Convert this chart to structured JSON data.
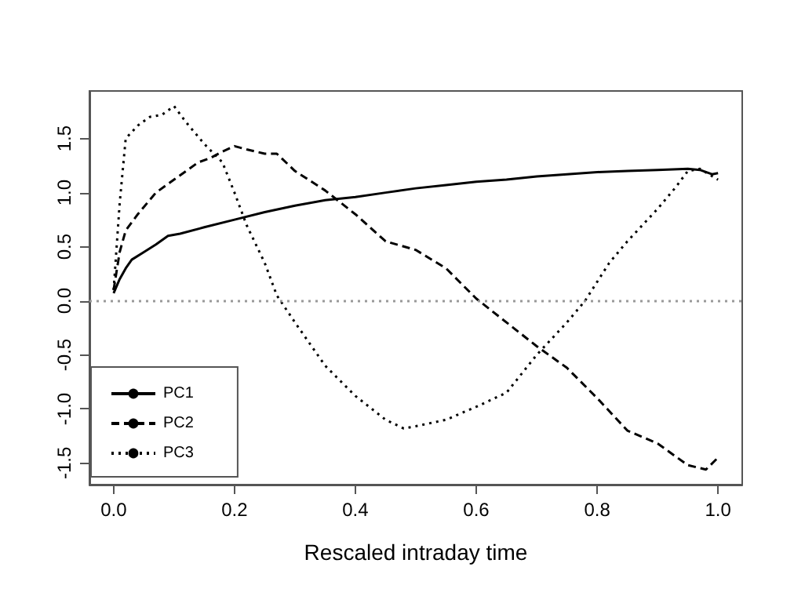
{
  "chart_data": {
    "type": "line",
    "xlabel": "Rescaled intraday time",
    "xlim": [
      -0.04,
      1.04
    ],
    "xticks": [
      {
        "value": 0,
        "label": "0.0"
      },
      0.2,
      0.4,
      0.6,
      0.8,
      {
        "value": 1,
        "label": "1.0"
      }
    ],
    "ylim": [
      -1.7,
      1.94
    ],
    "yticks": [
      -1.5,
      {
        "value": -1,
        "label": "-1.0"
      },
      -0.5,
      {
        "value": 0,
        "label": "0.0"
      },
      0.5,
      {
        "value": 1,
        "label": "1.0"
      },
      1.5
    ],
    "grid": false,
    "legend": "bottom left",
    "marker": "none",
    "ref_lines": [
      {
        "axis": "y",
        "value": 0,
        "color": "#999999",
        "line_style": "dotted"
      }
    ],
    "series": [
      {
        "name": "PC1",
        "color": "#000000",
        "line_style": "solid",
        "x": [
          0,
          0.01,
          0.02,
          0.03,
          0.05,
          0.07,
          0.09,
          0.11,
          0.15,
          0.2,
          0.25,
          0.3,
          0.35,
          0.4,
          0.45,
          0.5,
          0.55,
          0.6,
          0.65,
          0.7,
          0.75,
          0.8,
          0.85,
          0.9,
          0.95,
          0.97,
          0.99,
          1.0
        ],
        "values": [
          0.07,
          0.2,
          0.3,
          0.38,
          0.45,
          0.52,
          0.6,
          0.62,
          0.68,
          0.75,
          0.82,
          0.88,
          0.93,
          0.96,
          1.0,
          1.04,
          1.07,
          1.1,
          1.12,
          1.15,
          1.17,
          1.19,
          1.2,
          1.21,
          1.22,
          1.21,
          1.17,
          1.18
        ]
      },
      {
        "name": "PC2",
        "color": "#000000",
        "line_style": "dashed",
        "x": [
          0,
          0.01,
          0.02,
          0.04,
          0.07,
          0.1,
          0.14,
          0.16,
          0.18,
          0.2,
          0.22,
          0.25,
          0.27,
          0.3,
          0.35,
          0.4,
          0.45,
          0.5,
          0.55,
          0.6,
          0.65,
          0.7,
          0.75,
          0.8,
          0.85,
          0.9,
          0.95,
          0.98,
          1.0
        ],
        "values": [
          0.1,
          0.45,
          0.65,
          0.8,
          1.0,
          1.12,
          1.28,
          1.32,
          1.38,
          1.43,
          1.4,
          1.36,
          1.36,
          1.2,
          1.02,
          0.8,
          0.55,
          0.47,
          0.3,
          0.02,
          -0.2,
          -0.42,
          -0.62,
          -0.9,
          -1.2,
          -1.32,
          -1.52,
          -1.56,
          -1.45
        ]
      },
      {
        "name": "PC3",
        "color": "#000000",
        "line_style": "dotted",
        "x": [
          0,
          0.01,
          0.02,
          0.04,
          0.06,
          0.08,
          0.1,
          0.12,
          0.15,
          0.18,
          0.2,
          0.22,
          0.25,
          0.27,
          0.3,
          0.35,
          0.4,
          0.45,
          0.48,
          0.5,
          0.55,
          0.6,
          0.65,
          0.7,
          0.75,
          0.78,
          0.82,
          0.85,
          0.9,
          0.93,
          0.95,
          0.97,
          1.0
        ],
        "values": [
          0.1,
          0.9,
          1.5,
          1.62,
          1.7,
          1.72,
          1.8,
          1.65,
          1.45,
          1.28,
          1.0,
          0.7,
          0.35,
          0.05,
          -0.2,
          -0.6,
          -0.88,
          -1.1,
          -1.18,
          -1.16,
          -1.1,
          -0.98,
          -0.85,
          -0.5,
          -0.2,
          0.0,
          0.35,
          0.55,
          0.85,
          1.05,
          1.2,
          1.22,
          1.12
        ]
      }
    ]
  }
}
